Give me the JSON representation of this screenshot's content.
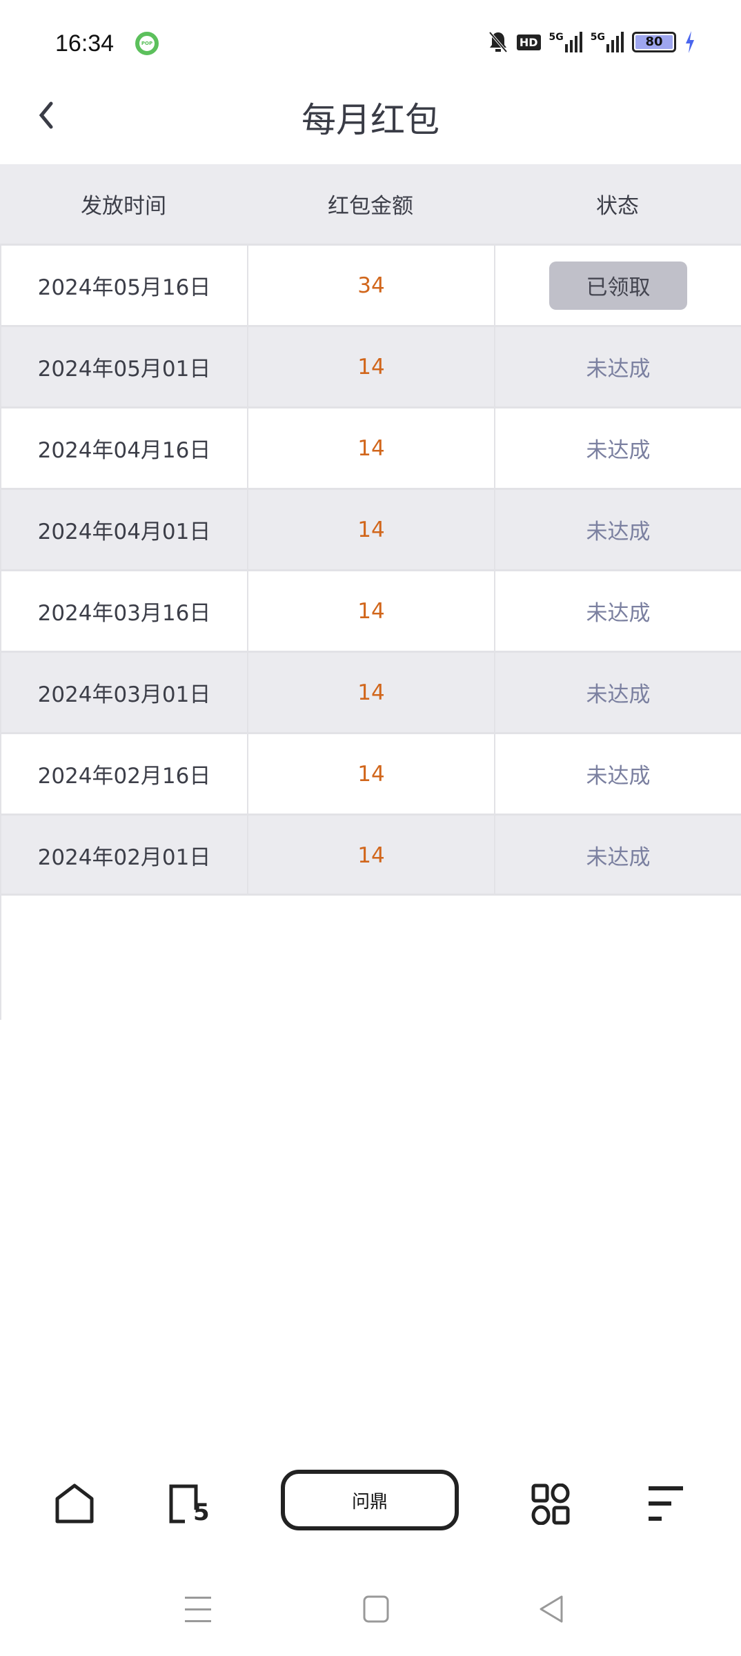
{
  "status_bar": {
    "time": "16:34",
    "notification_app": "POP",
    "network1": "5G",
    "network2": "5G",
    "battery": "80",
    "hd": "HD"
  },
  "header": {
    "title": "每月红包",
    "back_icon": "chevron-left-icon"
  },
  "table": {
    "columns": [
      "发放时间",
      "红包金额",
      "状态"
    ],
    "rows": [
      {
        "date": "2024年05月16日",
        "amount": "34",
        "status": "已领取",
        "claimed": true
      },
      {
        "date": "2024年05月01日",
        "amount": "14",
        "status": "未达成"
      },
      {
        "date": "2024年04月16日",
        "amount": "14",
        "status": "未达成"
      },
      {
        "date": "2024年04月01日",
        "amount": "14",
        "status": "未达成"
      },
      {
        "date": "2024年03月16日",
        "amount": "14",
        "status": "未达成"
      },
      {
        "date": "2024年03月01日",
        "amount": "14",
        "status": "未达成"
      },
      {
        "date": "2024年02月16日",
        "amount": "14",
        "status": "未达成"
      },
      {
        "date": "2024年02月01日",
        "amount": "14",
        "status": "未达成"
      }
    ]
  },
  "bottom_nav": {
    "tabs_count": "5",
    "center_label": "问鼎"
  },
  "colors": {
    "amount": "#d1661b",
    "status_unmet": "#7b80a0",
    "header_bg": "#ebebef",
    "claimed_bg": "#c0c0c9"
  }
}
